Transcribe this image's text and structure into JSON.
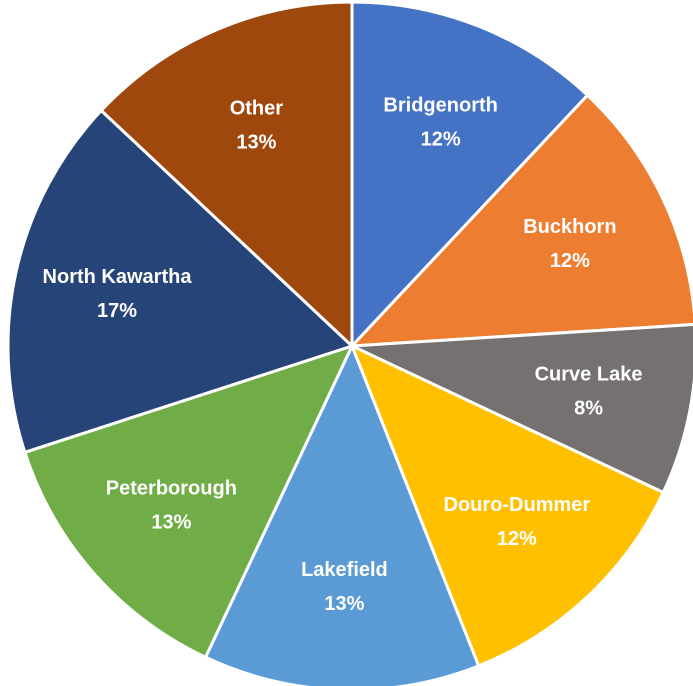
{
  "chart_data": {
    "type": "pie",
    "categories": [
      "Bridgenorth",
      "Buckhorn",
      "Curve Lake",
      "Douro-Dummer",
      "Lakefield",
      "Peterborough",
      "North Kawartha",
      "Other"
    ],
    "values": [
      12,
      12,
      8,
      12,
      13,
      13,
      17,
      13
    ],
    "value_labels": [
      "12%",
      "12%",
      "8%",
      "12%",
      "13%",
      "13%",
      "17%",
      "13%"
    ],
    "colors": [
      "#4472c4",
      "#ed7d31",
      "#767171",
      "#ffc000",
      "#5b9bd5",
      "#70ad47",
      "#264478",
      "#9e480e"
    ]
  }
}
